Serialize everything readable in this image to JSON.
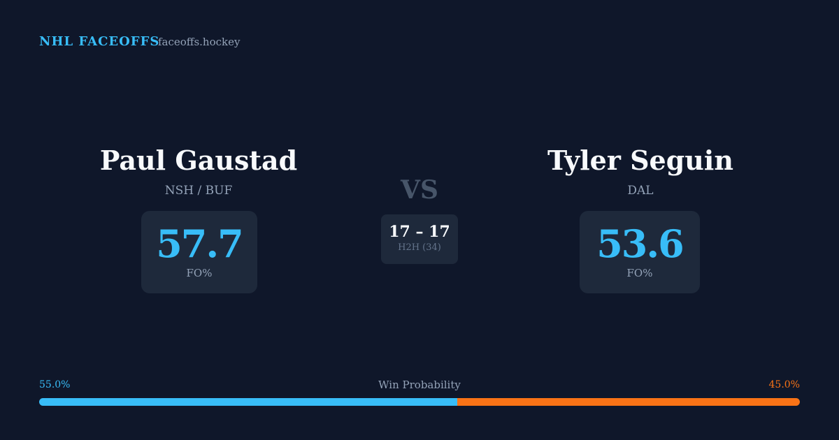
{
  "header": {
    "brand": "NHL FACEOFFS",
    "site": "faceoffs.hockey"
  },
  "players": [
    {
      "name": "Paul Gaustad",
      "teams": "NSH / BUF",
      "fo_pct": "57.7",
      "fo_label": "FO%"
    },
    {
      "name": "Tyler Seguin",
      "teams": "DAL",
      "fo_pct": "53.6",
      "fo_label": "FO%"
    }
  ],
  "versus": {
    "label": "VS",
    "h2h_score": "17 – 17",
    "h2h_label": "H2H (34)"
  },
  "win_probability": {
    "title": "Win Probability",
    "left": {
      "value": 55,
      "label": "55.0%",
      "color": "#38bdf8"
    },
    "right": {
      "value": 45,
      "label": "45.0%",
      "color": "#f97316"
    }
  }
}
